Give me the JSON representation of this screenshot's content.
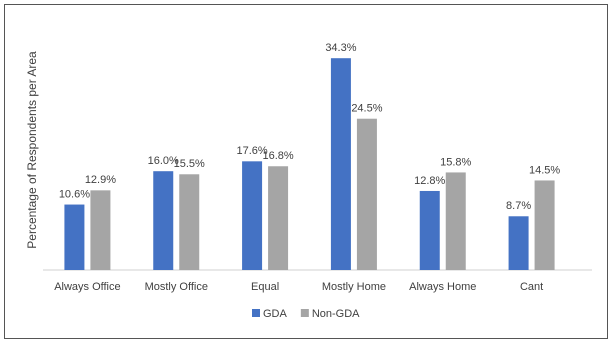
{
  "chart_data": {
    "type": "bar",
    "y_label": "Percentage of Respondents per Area",
    "categories": [
      "Always Office",
      "Mostly Office",
      "Equal",
      "Mostly Home",
      "Always Home",
      "Cant"
    ],
    "series": [
      {
        "name": "GDA",
        "color": "#4472c4",
        "values": [
          10.6,
          16.0,
          17.6,
          34.3,
          12.8,
          8.7
        ],
        "value_labels": [
          "10.6%",
          "16.0%",
          "17.6%",
          "34.3%",
          "12.8%",
          "8.7%"
        ]
      },
      {
        "name": "Non-GDA",
        "color": "#a5a5a5",
        "values": [
          12.9,
          15.5,
          16.8,
          24.5,
          15.8,
          14.5
        ],
        "value_labels": [
          "12.9%",
          "15.5%",
          "16.8%",
          "24.5%",
          "15.8%",
          "14.5%"
        ]
      }
    ],
    "ylim": [
      0,
      40
    ],
    "grid": false,
    "legend": "bottom"
  }
}
